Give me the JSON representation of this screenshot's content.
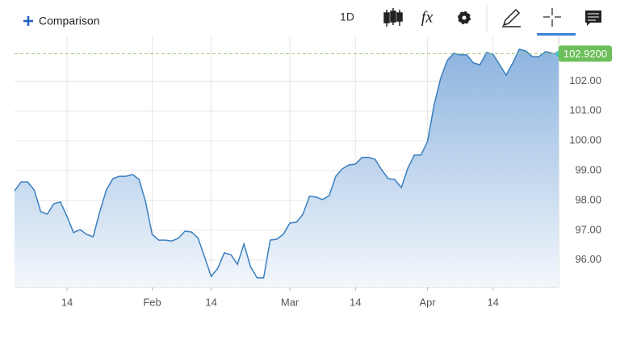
{
  "toolbar": {
    "comparison": "Comparison",
    "interval": "1D",
    "fx": "fx"
  },
  "chart_data": {
    "type": "area",
    "categories": [
      null,
      null,
      null,
      null,
      null,
      null,
      null,
      null,
      "14",
      null,
      null,
      null,
      null,
      null,
      null,
      null,
      null,
      null,
      null,
      null,
      null,
      "Feb",
      null,
      null,
      null,
      null,
      null,
      null,
      null,
      null,
      "14",
      null,
      null,
      null,
      null,
      null,
      null,
      null,
      null,
      null,
      null,
      null,
      "Mar",
      null,
      null,
      null,
      null,
      null,
      null,
      null,
      null,
      null,
      "14",
      null,
      null,
      null,
      null,
      null,
      null,
      null,
      null,
      null,
      null,
      "Apr",
      null,
      null,
      null,
      null,
      null,
      null,
      null,
      null,
      null,
      "14",
      null,
      null,
      null,
      null,
      null,
      null,
      null,
      null,
      null,
      null
    ],
    "series": [
      {
        "color": "#3a7fbf",
        "values": [
          98.32,
          98.62,
          98.62,
          98.35,
          97.62,
          97.54,
          97.89,
          97.95,
          97.46,
          96.92,
          97.02,
          96.86,
          96.78,
          97.62,
          98.35,
          98.73,
          98.81,
          98.81,
          98.87,
          98.7,
          97.95,
          96.86,
          96.67,
          96.67,
          96.64,
          96.73,
          96.97,
          96.94,
          96.73,
          96.1,
          95.45,
          95.72,
          96.24,
          96.18,
          95.86,
          96.54,
          95.78,
          95.4,
          95.4,
          96.67,
          96.7,
          96.86,
          97.24,
          97.27,
          97.54,
          98.14,
          98.11,
          98.03,
          98.16,
          98.81,
          99.06,
          99.19,
          99.22,
          99.44,
          99.44,
          99.38,
          99.03,
          98.73,
          98.7,
          98.43,
          99.08,
          99.52,
          99.52,
          99.98,
          101.2,
          102.09,
          102.69,
          102.93,
          102.88,
          102.88,
          102.61,
          102.55,
          102.96,
          102.9,
          102.55,
          102.2,
          102.61,
          103.07,
          103.01,
          102.82,
          102.82,
          102.99,
          102.93,
          102.92
        ]
      }
    ],
    "ylim": [
      95.1,
      103.5
    ],
    "yticks": [
      {
        "value": 96,
        "label": "96.00"
      },
      {
        "value": 97,
        "label": "97.00"
      },
      {
        "value": 98,
        "label": "98.00"
      },
      {
        "value": 99,
        "label": "99.00"
      },
      {
        "value": 100,
        "label": "100.00"
      },
      {
        "value": 101,
        "label": "101.00"
      },
      {
        "value": 102,
        "label": "102.00"
      }
    ],
    "last_price": {
      "value": 102.92,
      "label": "102.9200"
    },
    "grid": true
  }
}
